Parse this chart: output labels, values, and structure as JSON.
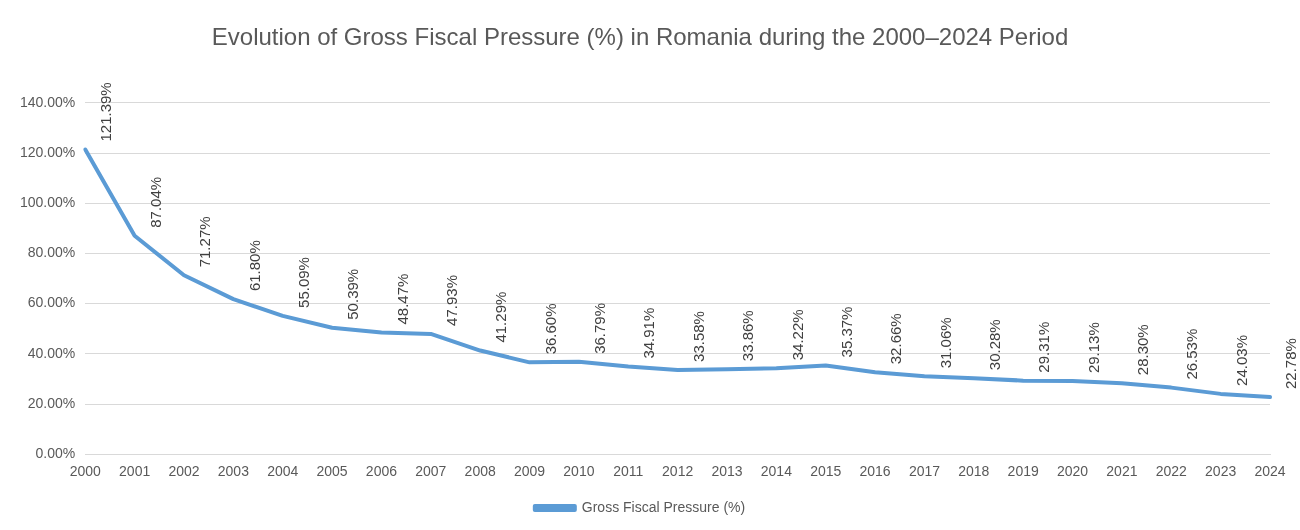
{
  "chart_data": {
    "type": "line",
    "title": "Evolution of Gross Fiscal Pressure (%) in Romania during the 2000–2024 Period",
    "categories": [
      "2000",
      "2001",
      "2002",
      "2003",
      "2004",
      "2005",
      "2006",
      "2007",
      "2008",
      "2009",
      "2010",
      "2011",
      "2012",
      "2013",
      "2014",
      "2015",
      "2016",
      "2017",
      "2018",
      "2019",
      "2020",
      "2021",
      "2022",
      "2023",
      "2024"
    ],
    "series": [
      {
        "name": "Gross Fiscal Pressure (%)",
        "color": "#5b9bd5",
        "values": [
          121.39,
          87.04,
          71.27,
          61.8,
          55.09,
          50.39,
          48.47,
          47.93,
          41.29,
          36.6,
          36.79,
          34.91,
          33.58,
          33.86,
          34.22,
          35.37,
          32.66,
          31.06,
          30.28,
          29.31,
          29.13,
          28.3,
          26.53,
          24.03,
          22.78
        ],
        "value_labels": [
          "121.39%",
          "87.04%",
          "71.27%",
          "61.80%",
          "55.09%",
          "50.39%",
          "48.47%",
          "47.93%",
          "41.29%",
          "36.60%",
          "36.79%",
          "34.91%",
          "33.58%",
          "33.86%",
          "34.22%",
          "35.37%",
          "32.66%",
          "31.06%",
          "30.28%",
          "29.31%",
          "29.13%",
          "28.30%",
          "26.53%",
          "24.03%",
          "22.78%"
        ]
      }
    ],
    "ylim": [
      0,
      140
    ],
    "yticks": [
      {
        "value": 0,
        "label": "0.00%"
      },
      {
        "value": 20,
        "label": "20.00%"
      },
      {
        "value": 40,
        "label": "40.00%"
      },
      {
        "value": 60,
        "label": "60.00%"
      },
      {
        "value": 80,
        "label": "80.00%"
      },
      {
        "value": 100,
        "label": "100.00%"
      },
      {
        "value": 120,
        "label": "120.00%"
      },
      {
        "value": 140,
        "label": "140.00%"
      }
    ],
    "grid": "y",
    "legend": "bottom",
    "marker": "none",
    "line_style": "solid"
  }
}
